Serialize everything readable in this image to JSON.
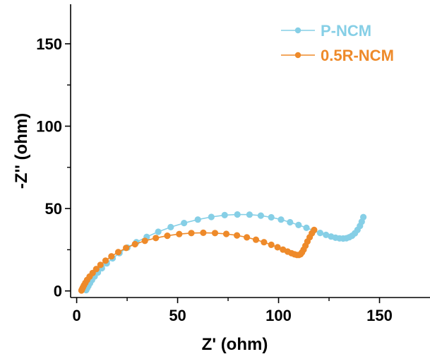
{
  "chart_data": {
    "type": "scatter",
    "xlabel": "Z' (ohm)",
    "ylabel": "-Z'' (ohm)",
    "xlim": [
      -3,
      175
    ],
    "ylim": [
      -4,
      174
    ],
    "x_ticks": [
      0,
      50,
      100,
      150
    ],
    "y_ticks": [
      0,
      50,
      100,
      150
    ],
    "legend_position": "top-right",
    "grid": false,
    "series": [
      {
        "name": "P-NCM",
        "color": "#86CFE6",
        "x": [
          4.7,
          5.2,
          5.8,
          6.6,
          7.6,
          8.9,
          10.5,
          12.5,
          14.9,
          17.8,
          21.2,
          25.1,
          29.6,
          34.7,
          40.4,
          46.6,
          53.2,
          60.0,
          66.7,
          73.3,
          79.6,
          85.6,
          91.2,
          96.4,
          101.2,
          105.7,
          109.9,
          113.8,
          117.4,
          120.6,
          123.5,
          126.0,
          128.2,
          130.2,
          132.0,
          133.6,
          135.0,
          136.4,
          137.8,
          139.1,
          140.3,
          141.2,
          142.0
        ],
        "y": [
          0.5,
          1.6,
          3.0,
          4.7,
          6.6,
          8.8,
          11.2,
          13.8,
          16.7,
          19.8,
          23.0,
          26.3,
          29.6,
          32.8,
          35.9,
          38.7,
          41.2,
          43.3,
          44.9,
          46.0,
          46.4,
          46.3,
          45.7,
          44.7,
          43.3,
          41.7,
          40.0,
          38.3,
          36.6,
          35.2,
          34.0,
          33.0,
          32.3,
          31.9,
          31.8,
          32.0,
          32.6,
          33.5,
          35.0,
          37.0,
          39.4,
          42.0,
          44.8
        ]
      },
      {
        "name": "0.5R-NCM",
        "color": "#EE8A2A",
        "x": [
          2.4,
          2.7,
          3.1,
          3.6,
          4.3,
          5.2,
          6.4,
          7.9,
          9.7,
          11.8,
          14.3,
          17.2,
          20.6,
          24.5,
          28.9,
          33.8,
          39.2,
          44.9,
          50.8,
          56.8,
          62.7,
          68.5,
          74.1,
          79.4,
          84.3,
          88.8,
          92.8,
          96.4,
          99.5,
          102.2,
          104.5,
          106.4,
          107.9,
          109.1,
          110.1,
          110.9,
          111.6,
          112.4,
          113.3,
          114.3,
          115.4,
          116.5,
          117.6
        ],
        "y": [
          0.3,
          1.1,
          2.1,
          3.4,
          4.9,
          6.7,
          8.7,
          10.9,
          13.3,
          15.8,
          18.4,
          21.0,
          23.6,
          26.1,
          28.4,
          30.4,
          32.1,
          33.5,
          34.5,
          35.1,
          35.3,
          35.1,
          34.6,
          33.7,
          32.5,
          31.1,
          29.6,
          28.0,
          26.5,
          25.1,
          23.9,
          22.9,
          22.2,
          21.8,
          21.8,
          22.3,
          23.4,
          25.1,
          27.4,
          30.0,
          32.6,
          35.0,
          37.0
        ]
      }
    ]
  }
}
